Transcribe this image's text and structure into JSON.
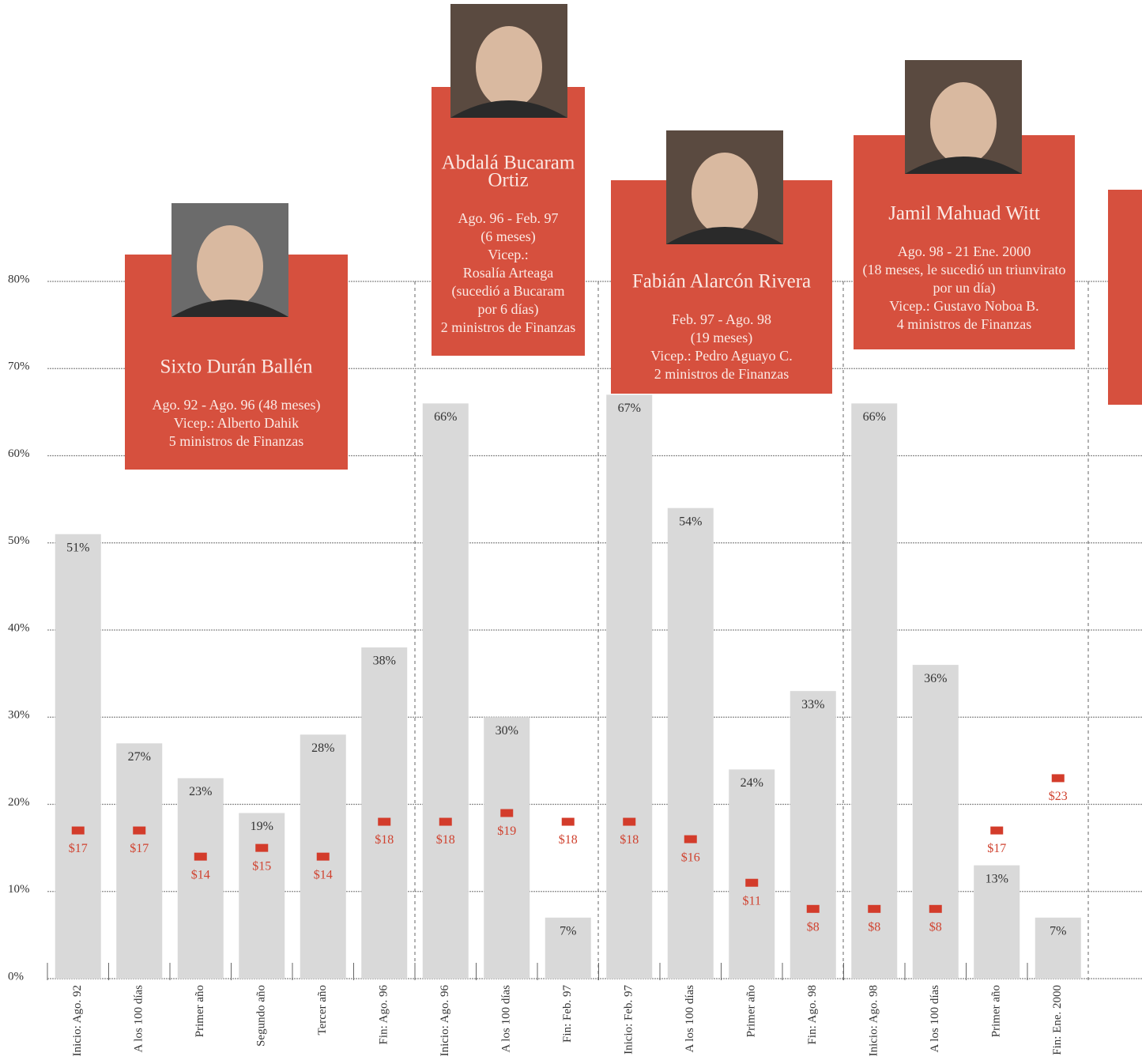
{
  "chart_data": {
    "type": "bar",
    "categories": [
      "Inicio: Ago. 92",
      "A los 100 días",
      "Primer año",
      "Segundo año",
      "Tercer año",
      "Fin: Ago. 96",
      "Inicio: Ago. 96",
      "A los 100 días",
      "Fin: Feb. 97",
      "Inicio: Feb. 97",
      "A los 100 días",
      "Primer año",
      "Fin: Ago. 98",
      "Inicio: Ago. 98",
      "A los 100 días",
      "Primer año",
      "Fin: Ene. 2000"
    ],
    "values": [
      51,
      27,
      23,
      19,
      28,
      38,
      66,
      30,
      7,
      67,
      54,
      24,
      33,
      66,
      36,
      13,
      7
    ],
    "value_labels": [
      "51%",
      "27%",
      "23%",
      "19%",
      "28%",
      "38%",
      "66%",
      "30%",
      "7%",
      "67%",
      "54%",
      "24%",
      "33%",
      "66%",
      "36%",
      "13%",
      "7%"
    ],
    "color": "#d9d9d9",
    "markers": {
      "values": [
        17,
        17,
        14,
        15,
        14,
        18,
        18,
        19,
        18,
        18,
        16,
        11,
        8,
        8,
        8,
        17,
        23
      ],
      "value_labels": [
        "$17",
        "$17",
        "$14",
        "$15",
        "$14",
        "$18",
        "$18",
        "$19",
        "$18",
        "$18",
        "$16",
        "$11",
        "$8",
        "$8",
        "$8",
        "$17",
        "$23"
      ],
      "color": "#d33c2b"
    },
    "ylim": [
      0,
      80
    ],
    "yticks": [
      {
        "value": 0,
        "label": "0%"
      },
      {
        "value": 10,
        "label": "10%"
      },
      {
        "value": 20,
        "label": "20%"
      },
      {
        "value": 30,
        "label": "30%"
      },
      {
        "value": 40,
        "label": "40%"
      },
      {
        "value": 50,
        "label": "50%"
      },
      {
        "value": 60,
        "label": "60%"
      },
      {
        "value": 70,
        "label": "70%"
      },
      {
        "value": 80,
        "label": "80%"
      }
    ],
    "grid": true,
    "presidents": [
      {
        "name": [
          "Sixto Durán Ballén"
        ],
        "lines": [
          "Ago. 92 - Ago. 96 (48 meses)",
          "Vicep.: Alberto Dahik",
          "5 ministros de Finanzas"
        ]
      },
      {
        "name": [
          "Abdalá Bucaram",
          "Ortiz"
        ],
        "lines": [
          "Ago. 96 - Feb. 97",
          "(6 meses)",
          "Vicep.:",
          "Rosalía Arteaga",
          "(sucedió a Bucaram",
          "por 6 días)",
          "2 ministros de Finanzas"
        ]
      },
      {
        "name": [
          "Fabián Alarcón Rivera"
        ],
        "lines": [
          "Feb. 97 - Ago. 98",
          "(19 meses)",
          "Vicep.: Pedro Aguayo C.",
          "2 ministros de Finanzas"
        ]
      },
      {
        "name": [
          "Jamil Mahuad Witt"
        ],
        "lines": [
          "Ago. 98 - 21 Ene. 2000",
          "(18 meses, le sucedió un triunvirato",
          "por un día)",
          "Vicep.: Gustavo Noboa B.",
          "4 ministros de Finanzas"
        ]
      }
    ]
  }
}
